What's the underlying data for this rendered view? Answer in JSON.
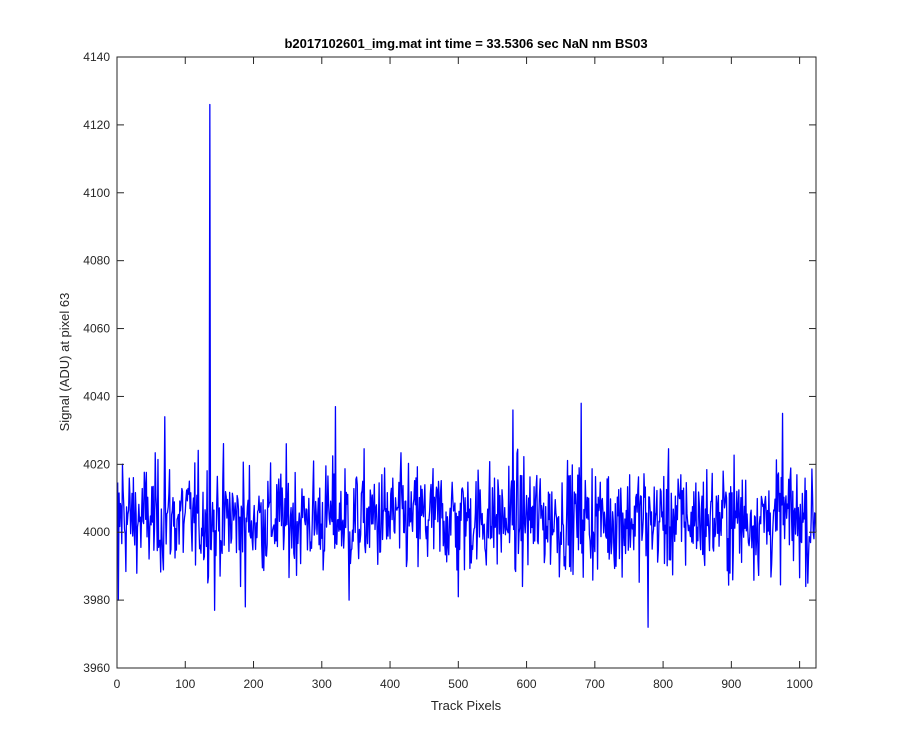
{
  "chart_data": {
    "type": "line",
    "title": "b2017102601_img.mat int time = 33.5306 sec  NaN nm BS03",
    "xlabel": "Track Pixels",
    "ylabel": "Signal (ADU) at pixel 63",
    "xlim": [
      0,
      1024
    ],
    "ylim": [
      3960,
      4140
    ],
    "xticks": [
      0,
      100,
      200,
      300,
      400,
      500,
      600,
      700,
      800,
      900,
      1000
    ],
    "yticks": [
      3960,
      3980,
      4000,
      4020,
      4040,
      4060,
      4080,
      4100,
      4120,
      4140
    ],
    "grid": false,
    "box": true,
    "line_color": "#0000ff",
    "series": [
      {
        "baseline": 4004,
        "features": [
          {
            "x": 2,
            "y": 3980
          },
          {
            "x": 8,
            "y": 4020
          },
          {
            "x": 70,
            "y": 4034
          },
          {
            "x": 136,
            "y": 4126
          },
          {
            "x": 143,
            "y": 3977
          },
          {
            "x": 188,
            "y": 3978
          },
          {
            "x": 320,
            "y": 4037
          },
          {
            "x": 340,
            "y": 3980
          },
          {
            "x": 500,
            "y": 3981
          },
          {
            "x": 580,
            "y": 4036
          },
          {
            "x": 680,
            "y": 4038
          },
          {
            "x": 778,
            "y": 3972
          },
          {
            "x": 975,
            "y": 4035
          },
          {
            "x": 1012,
            "y": 3985
          }
        ]
      }
    ]
  }
}
